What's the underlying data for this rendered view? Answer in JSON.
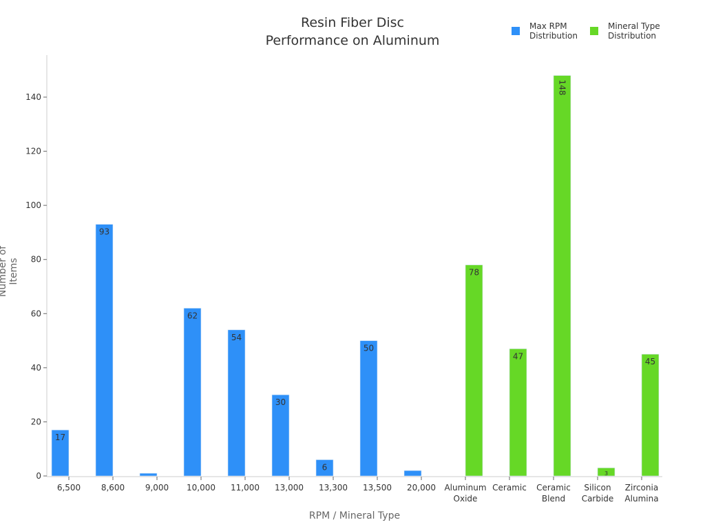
{
  "chart_data": {
    "type": "bar",
    "title": "Resin Fiber Disc Performance on Aluminum",
    "title_lines": [
      "Resin Fiber Disc",
      "Performance on Aluminum"
    ],
    "xlabel": "RPM / Mineral Type",
    "ylabel": "Number of Items",
    "ylim": [
      0,
      150
    ],
    "yticks": [
      0,
      20,
      40,
      60,
      80,
      100,
      120,
      140
    ],
    "grid": false,
    "legend_position": "top-right",
    "categories": [
      "6,500",
      "8,600",
      "9,000",
      "10,000",
      "11,000",
      "13,000",
      "13,300",
      "13,500",
      "20,000",
      "Aluminum Oxide",
      "Ceramic",
      "Ceramic Blend",
      "Silicon Carbide",
      "Zirconia Alumina"
    ],
    "series": [
      {
        "name": "Max RPM Distribution",
        "color": "#2e90f8",
        "values": [
          17,
          93,
          1,
          62,
          54,
          30,
          6,
          50,
          2,
          null,
          null,
          null,
          null,
          null
        ]
      },
      {
        "name": "Mineral Type Distribution",
        "color": "#66d826",
        "values": [
          null,
          null,
          null,
          null,
          null,
          null,
          null,
          null,
          null,
          78,
          47,
          148,
          3,
          45
        ]
      }
    ]
  },
  "header": {
    "title_line1": "Resin Fiber Disc",
    "title_line2": "Performance on Aluminum"
  },
  "legend": {
    "items": [
      {
        "line1": "Max RPM",
        "line2": "Distribution",
        "color": "#2e90f8"
      },
      {
        "line1": "Mineral Type",
        "line2": "Distribution",
        "color": "#66d826"
      }
    ]
  },
  "axes": {
    "xlabel": "RPM / Mineral Type",
    "ylabel": "Number of Items"
  }
}
